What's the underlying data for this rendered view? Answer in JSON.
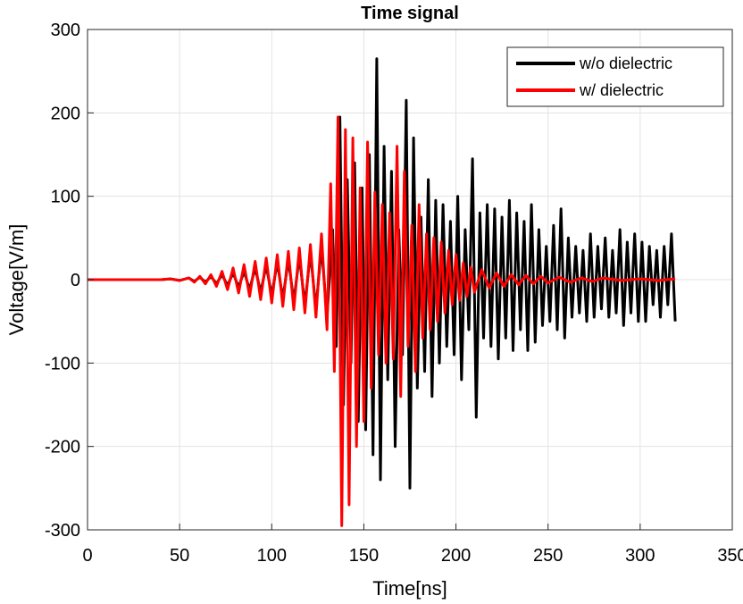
{
  "chart_data": {
    "type": "line",
    "title": "Time signal",
    "xlabel": "Time[ns]",
    "ylabel": "Voltage[V/m]",
    "xlim": [
      0,
      350
    ],
    "ylim": [
      -300,
      300
    ],
    "xticks": [
      "0",
      "50",
      "100",
      "150",
      "200",
      "250",
      "300",
      "350"
    ],
    "yticks": [
      "300",
      "200",
      "100",
      "0",
      "-100",
      "-200",
      "-300"
    ],
    "grid": true,
    "legend_position": "top-right",
    "series": [
      {
        "name": "w/o dielectric",
        "color": "#000000",
        "x": [
          0,
          40,
          45,
          50,
          55,
          58,
          61,
          64,
          67,
          70,
          73,
          76,
          79,
          82,
          85,
          88,
          91,
          94,
          97,
          100,
          103,
          106,
          109,
          112,
          115,
          118,
          121,
          124,
          127,
          130,
          133,
          135,
          137,
          139,
          141,
          143,
          145,
          147,
          149,
          151,
          153,
          155,
          157,
          159,
          161,
          163,
          165,
          167,
          169,
          171,
          173,
          175,
          177,
          179,
          181,
          183,
          185,
          187,
          189,
          191,
          193,
          195,
          197,
          199,
          201,
          203,
          205,
          207,
          209,
          211,
          213,
          215,
          217,
          219,
          221,
          223,
          225,
          227,
          229,
          231,
          233,
          235,
          237,
          239,
          241,
          243,
          245,
          247,
          249,
          251,
          253,
          255,
          257,
          259,
          261,
          263,
          265,
          267,
          269,
          271,
          273,
          275,
          277,
          279,
          281,
          283,
          285,
          287,
          289,
          291,
          293,
          295,
          297,
          299,
          301,
          303,
          305,
          307,
          309,
          311,
          313,
          315,
          317,
          319
        ],
        "y": [
          0,
          0,
          1,
          -1,
          2,
          -2,
          3,
          -3,
          4,
          -5,
          6,
          -7,
          8,
          -9,
          10,
          -12,
          14,
          -15,
          17,
          -19,
          21,
          -23,
          24,
          -26,
          28,
          -30,
          32,
          -35,
          40,
          -45,
          60,
          -80,
          195,
          -150,
          120,
          -100,
          140,
          -170,
          110,
          -180,
          150,
          -210,
          265,
          -240,
          160,
          -120,
          130,
          -200,
          60,
          -90,
          215,
          -250,
          170,
          -130,
          75,
          -110,
          120,
          -140,
          95,
          -100,
          90,
          -80,
          70,
          -90,
          100,
          -120,
          60,
          -60,
          145,
          -165,
          80,
          -70,
          90,
          -80,
          85,
          -95,
          75,
          -70,
          95,
          -85,
          80,
          -60,
          70,
          -85,
          90,
          -75,
          60,
          -55,
          40,
          -50,
          65,
          -60,
          85,
          -70,
          50,
          -45,
          40,
          -40,
          35,
          -50,
          55,
          -45,
          40,
          -35,
          50,
          -45,
          35,
          -40,
          60,
          -55,
          45,
          -40,
          55,
          -50,
          45,
          -50,
          40,
          -30,
          35,
          -45,
          40,
          -30,
          55,
          -50
        ]
      },
      {
        "name": "w/ dielectric",
        "color": "#ff0000",
        "x": [
          0,
          40,
          45,
          50,
          55,
          58,
          61,
          64,
          67,
          70,
          73,
          76,
          79,
          82,
          85,
          88,
          91,
          94,
          97,
          100,
          103,
          106,
          109,
          112,
          115,
          118,
          121,
          124,
          127,
          130,
          132,
          134,
          136,
          138,
          140,
          142,
          144,
          146,
          148,
          150,
          152,
          154,
          156,
          158,
          160,
          162,
          164,
          166,
          168,
          170,
          172,
          174,
          176,
          178,
          180,
          182,
          184,
          186,
          188,
          190,
          192,
          194,
          196,
          198,
          200,
          202,
          204,
          206,
          208,
          210,
          214,
          218,
          222,
          226,
          230,
          234,
          238,
          242,
          246,
          250,
          256,
          262,
          268,
          274,
          280,
          290,
          300,
          310,
          319
        ],
        "y": [
          0,
          0,
          1,
          -1,
          2,
          -3,
          4,
          -5,
          6,
          -8,
          10,
          -12,
          14,
          -16,
          18,
          -20,
          22,
          -24,
          26,
          -28,
          30,
          -32,
          34,
          -36,
          38,
          -40,
          42,
          -45,
          55,
          -60,
          115,
          -110,
          195,
          -295,
          180,
          -270,
          170,
          -200,
          110,
          -170,
          165,
          -130,
          105,
          -90,
          90,
          -100,
          80,
          -95,
          160,
          -140,
          130,
          -80,
          65,
          -110,
          90,
          -70,
          55,
          -60,
          50,
          -50,
          45,
          -40,
          35,
          -30,
          30,
          -25,
          20,
          -20,
          15,
          -15,
          12,
          -10,
          8,
          -8,
          6,
          -6,
          5,
          -5,
          4,
          -4,
          3,
          -3,
          2,
          -2,
          2,
          -1,
          1,
          -1,
          1
        ]
      }
    ]
  }
}
